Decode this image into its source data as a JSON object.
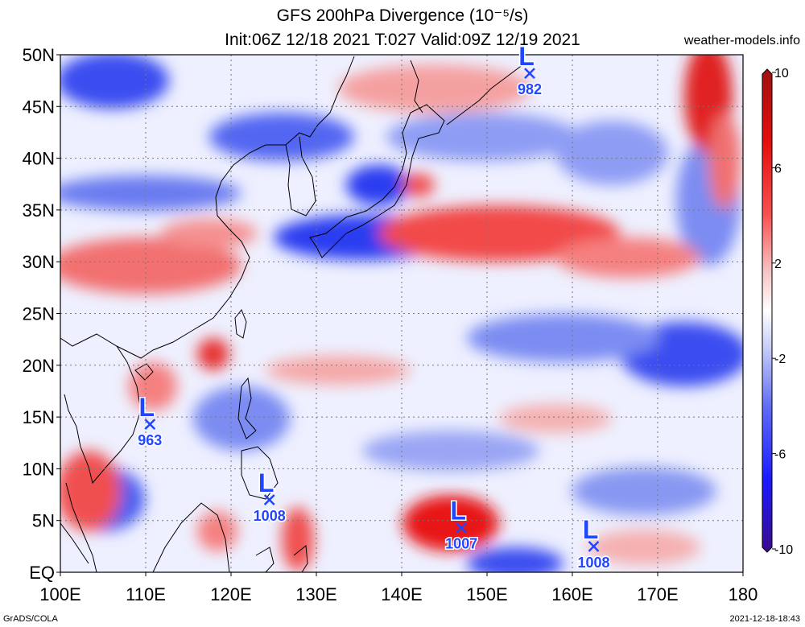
{
  "header": {
    "title_line1": "GFS 200hPa Divergence (10⁻⁵/s)",
    "title_line2": "Init:06Z 12/18 2021 T:027 Valid:09Z 12/19 2021",
    "site": "weather-models.info"
  },
  "axes": {
    "lon_ticks": [
      "100E",
      "110E",
      "120E",
      "130E",
      "140E",
      "150E",
      "160E",
      "170E",
      "180"
    ],
    "lat_ticks": [
      "EQ",
      "5N",
      "10N",
      "15N",
      "20N",
      "25N",
      "30N",
      "35N",
      "40N",
      "45N",
      "50N"
    ],
    "lon_range": [
      100,
      180
    ],
    "lat_range": [
      0,
      50
    ],
    "grid": true
  },
  "colorbar": {
    "labels": [
      "10",
      "6",
      "2",
      "-2",
      "-6",
      "-10"
    ],
    "range": [
      -10,
      10
    ],
    "colors_low_to_high": [
      "#3b0a8c",
      "#1a1aff",
      "#5e6cf5",
      "#a9b4f5",
      "#ffffff",
      "#f5b1b1",
      "#f75050",
      "#e50d0d",
      "#a01010"
    ]
  },
  "lows": [
    {
      "symbol": "L",
      "pressure": "963",
      "lon": 110.5,
      "lat": 14.3
    },
    {
      "symbol": "L",
      "pressure": "1008",
      "lon": 124.5,
      "lat": 7.0
    },
    {
      "symbol": "L",
      "pressure": "1007",
      "lon": 147.0,
      "lat": 4.3
    },
    {
      "symbol": "L",
      "pressure": "1008",
      "lon": 162.5,
      "lat": 2.5
    },
    {
      "symbol": "L",
      "pressure": "982",
      "lon": 155.0,
      "lat": 48.2
    }
  ],
  "footer": {
    "left": "GrADS/COLA",
    "right": "2021-12-18-18:43"
  },
  "colors": {
    "low_marker": "#2046ff",
    "grid": "#777777"
  }
}
